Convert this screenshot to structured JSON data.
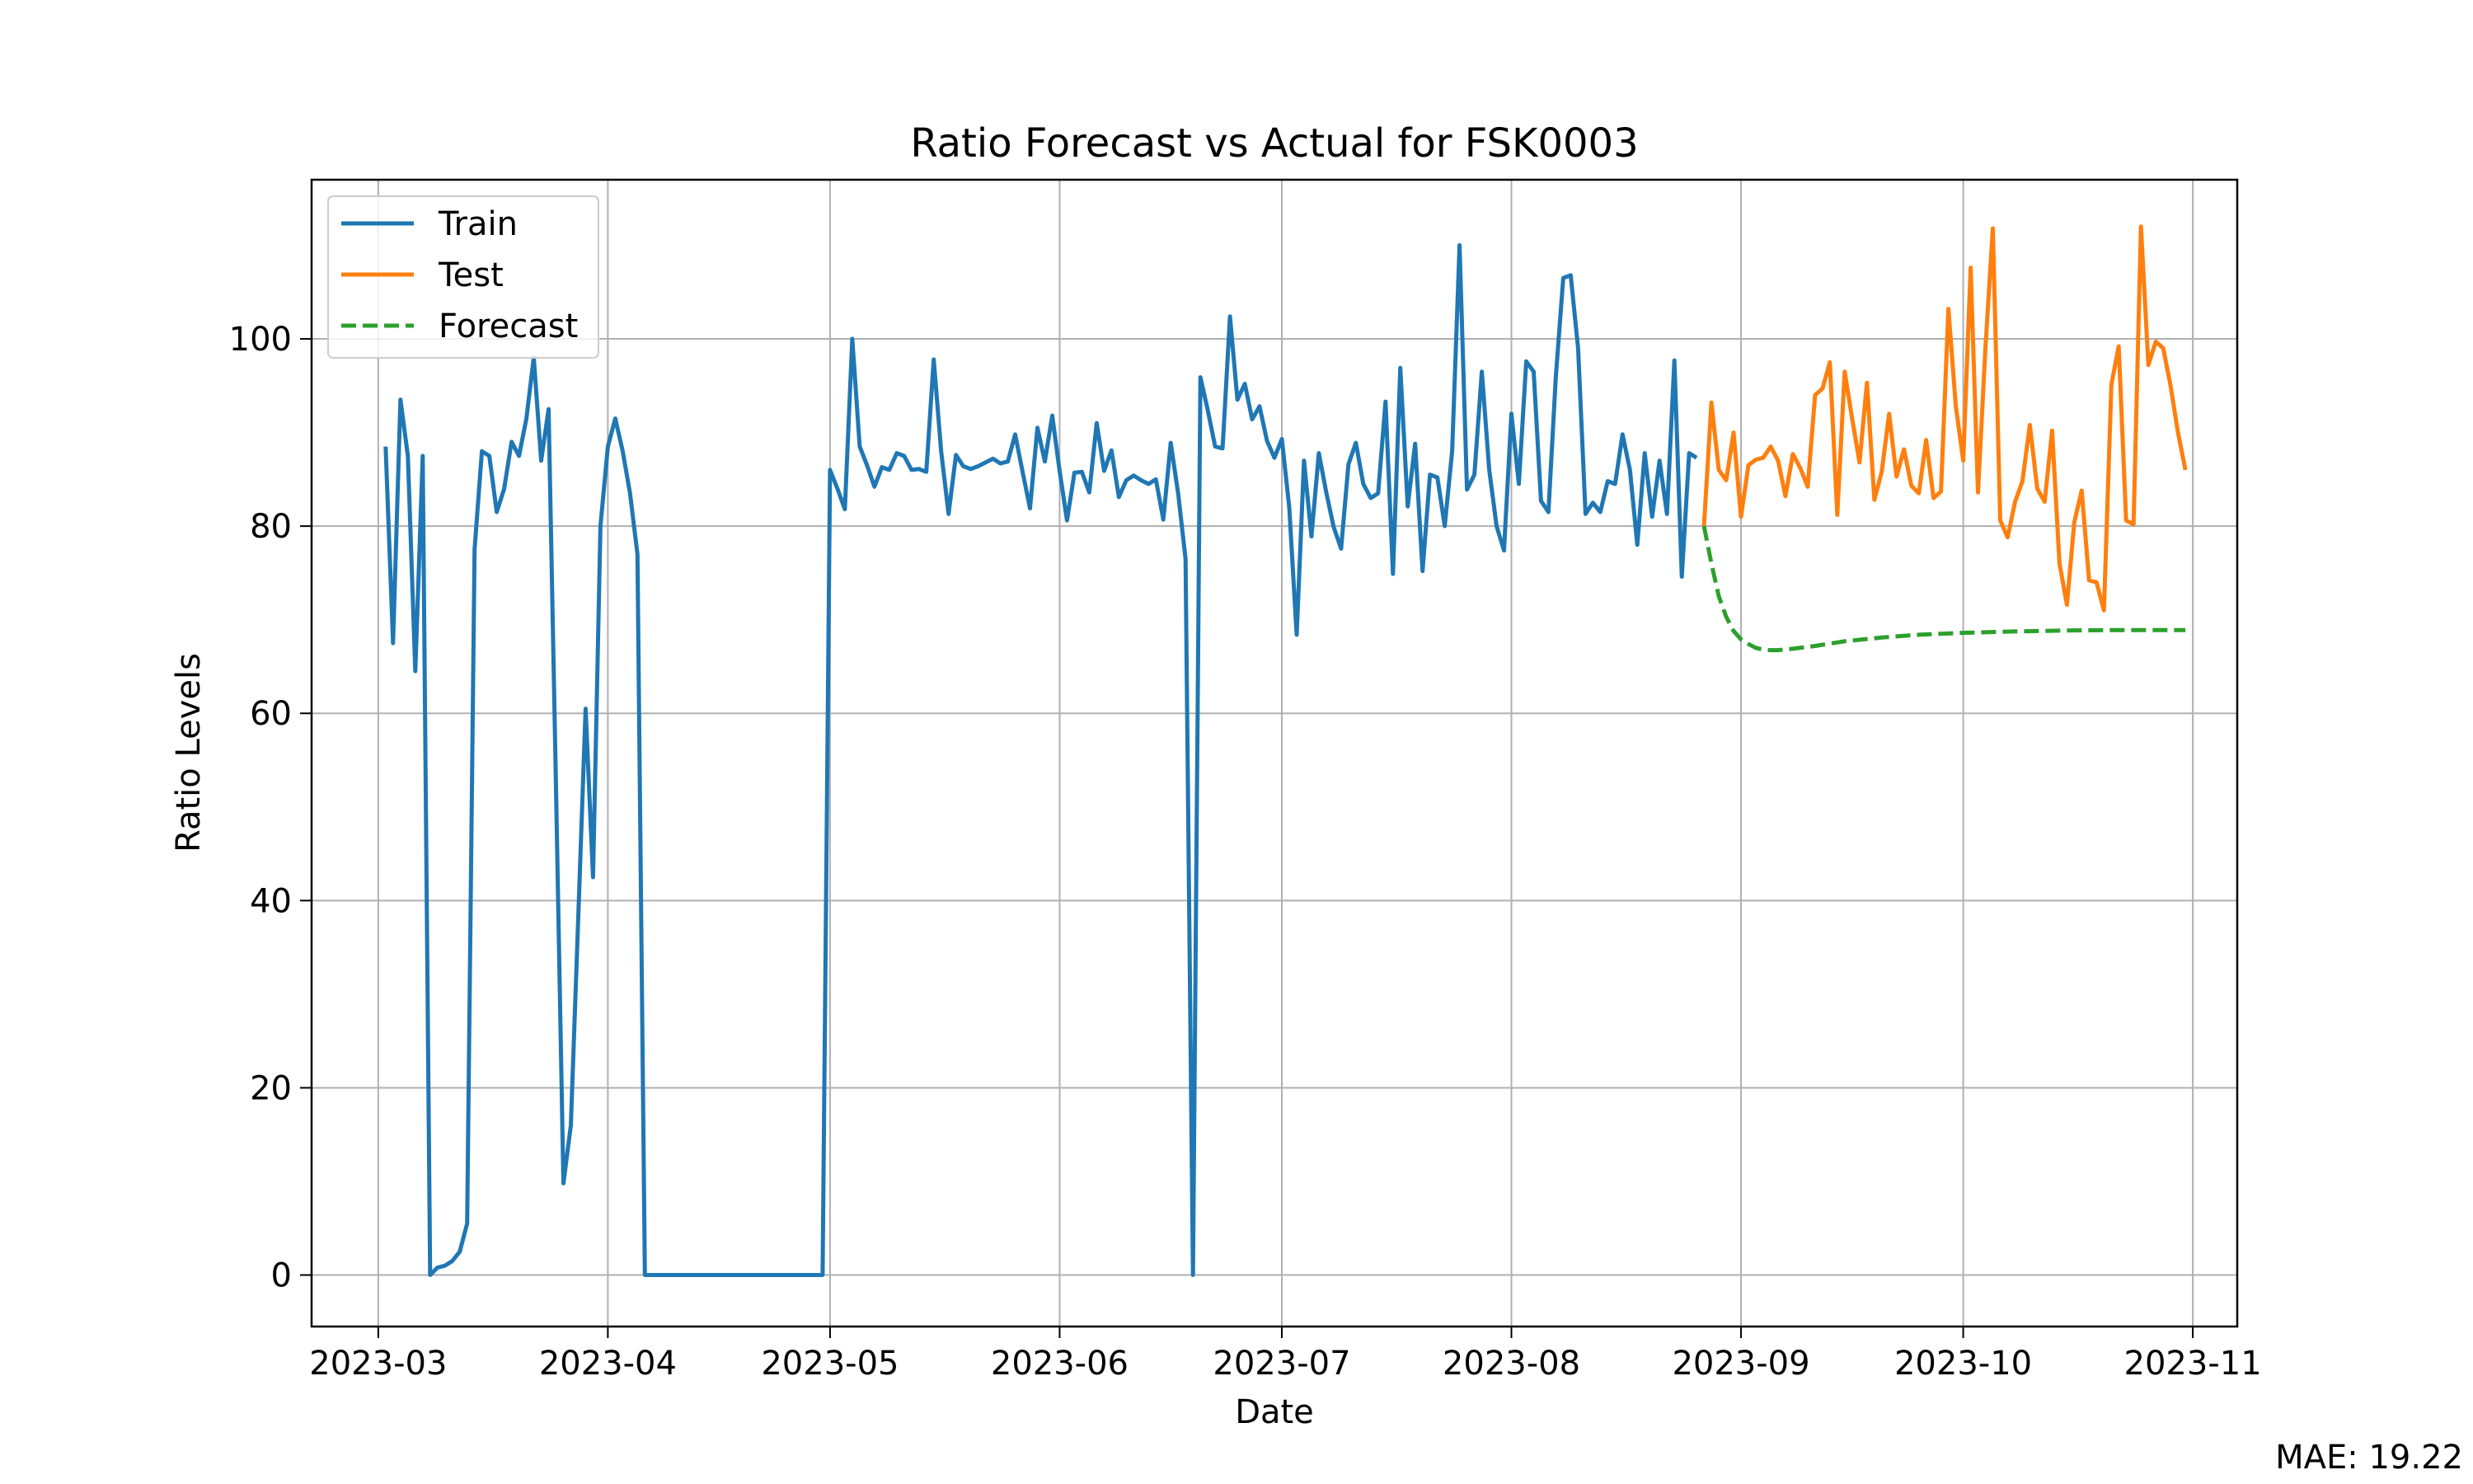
{
  "chart_data": {
    "type": "line",
    "title": "Ratio Forecast vs Actual for FSK0003",
    "xlabel": "Date",
    "ylabel": "Ratio Levels",
    "x_axis_type": "date",
    "xlim": [
      "2023-02-20",
      "2023-11-07"
    ],
    "ylim": [
      -5.5,
      117
    ],
    "x_ticks": [
      "2023-03",
      "2023-04",
      "2023-05",
      "2023-06",
      "2023-07",
      "2023-08",
      "2023-09",
      "2023-10",
      "2023-11"
    ],
    "y_ticks": [
      0,
      20,
      40,
      60,
      80,
      100
    ],
    "grid": true,
    "legend_position": "top-left",
    "series": [
      {
        "name": "Train",
        "color": "#1f77b4",
        "style": "solid",
        "points": [
          [
            "2023-03-02",
            88.5
          ],
          [
            "2023-03-03",
            67.5
          ],
          [
            "2023-03-04",
            93.5
          ],
          [
            "2023-03-05",
            87.5
          ],
          [
            "2023-03-06",
            64.5
          ],
          [
            "2023-03-07",
            87.5
          ],
          [
            "2023-03-08",
            0
          ],
          [
            "2023-03-09",
            0.8
          ],
          [
            "2023-03-10",
            1.0
          ],
          [
            "2023-03-11",
            1.5
          ],
          [
            "2023-03-12",
            2.5
          ],
          [
            "2023-03-13",
            5.5
          ],
          [
            "2023-03-14",
            77.5
          ],
          [
            "2023-03-15",
            88.0
          ],
          [
            "2023-03-16",
            87.5
          ],
          [
            "2023-03-17",
            81.5
          ],
          [
            "2023-03-18",
            84.0
          ],
          [
            "2023-03-19",
            89.0
          ],
          [
            "2023-03-20",
            87.5
          ],
          [
            "2023-03-21",
            91.5
          ],
          [
            "2023-03-22",
            98.0
          ],
          [
            "2023-03-23",
            87.0
          ],
          [
            "2023-03-24",
            92.5
          ],
          [
            "2023-03-25",
            52.0
          ],
          [
            "2023-03-26",
            9.8
          ],
          [
            "2023-03-27",
            16.0
          ],
          [
            "2023-03-28",
            38.0
          ],
          [
            "2023-03-29",
            60.5
          ],
          [
            "2023-03-30",
            42.5
          ],
          [
            "2023-03-31",
            80.0
          ],
          [
            "2023-04-01",
            88.5
          ],
          [
            "2023-04-02",
            91.5
          ],
          [
            "2023-04-03",
            88.0
          ],
          [
            "2023-04-04",
            83.5
          ],
          [
            "2023-04-05",
            77.0
          ],
          [
            "2023-04-06",
            0
          ],
          [
            "2023-04-30",
            0
          ],
          [
            "2023-05-01",
            86.0
          ],
          [
            "2023-05-02",
            84.0
          ],
          [
            "2023-05-03",
            81.8
          ],
          [
            "2023-05-04",
            100.0
          ],
          [
            "2023-05-05",
            88.5
          ],
          [
            "2023-05-06",
            86.5
          ],
          [
            "2023-05-07",
            84.2
          ],
          [
            "2023-05-08",
            86.3
          ],
          [
            "2023-05-09",
            86.0
          ],
          [
            "2023-05-10",
            87.8
          ],
          [
            "2023-05-11",
            87.5
          ],
          [
            "2023-05-12",
            86.0
          ],
          [
            "2023-05-13",
            86.1
          ],
          [
            "2023-05-14",
            85.8
          ],
          [
            "2023-05-15",
            97.8
          ],
          [
            "2023-05-16",
            88.0
          ],
          [
            "2023-05-17",
            81.3
          ],
          [
            "2023-05-18",
            87.6
          ],
          [
            "2023-05-19",
            86.4
          ],
          [
            "2023-05-20",
            86.1
          ],
          [
            "2023-05-21",
            86.4
          ],
          [
            "2023-05-22",
            86.8
          ],
          [
            "2023-05-23",
            87.2
          ],
          [
            "2023-05-24",
            86.7
          ],
          [
            "2023-05-25",
            86.9
          ],
          [
            "2023-05-26",
            89.8
          ],
          [
            "2023-05-27",
            85.8
          ],
          [
            "2023-05-28",
            81.9
          ],
          [
            "2023-05-29",
            90.5
          ],
          [
            "2023-05-30",
            86.9
          ],
          [
            "2023-05-31",
            91.8
          ],
          [
            "2023-06-01",
            85.9
          ],
          [
            "2023-06-02",
            80.6
          ],
          [
            "2023-06-03",
            85.7
          ],
          [
            "2023-06-04",
            85.8
          ],
          [
            "2023-06-05",
            83.6
          ],
          [
            "2023-06-06",
            91.0
          ],
          [
            "2023-06-07",
            85.9
          ],
          [
            "2023-06-08",
            88.1
          ],
          [
            "2023-06-09",
            83.1
          ],
          [
            "2023-06-10",
            84.9
          ],
          [
            "2023-06-11",
            85.4
          ],
          [
            "2023-06-12",
            84.9
          ],
          [
            "2023-06-13",
            84.5
          ],
          [
            "2023-06-14",
            85.0
          ],
          [
            "2023-06-15",
            80.7
          ],
          [
            "2023-06-16",
            88.9
          ],
          [
            "2023-06-17",
            83.5
          ],
          [
            "2023-06-18",
            76.5
          ],
          [
            "2023-06-19",
            0
          ],
          [
            "2023-06-20",
            95.9
          ],
          [
            "2023-06-21",
            92.4
          ],
          [
            "2023-06-22",
            88.5
          ],
          [
            "2023-06-23",
            88.3
          ],
          [
            "2023-06-24",
            102.4
          ],
          [
            "2023-06-25",
            93.5
          ],
          [
            "2023-06-26",
            95.2
          ],
          [
            "2023-06-27",
            91.4
          ],
          [
            "2023-06-28",
            92.8
          ],
          [
            "2023-06-29",
            89.1
          ],
          [
            "2023-06-30",
            87.3
          ],
          [
            "2023-07-01",
            89.3
          ],
          [
            "2023-07-02",
            82.0
          ],
          [
            "2023-07-03",
            68.4
          ],
          [
            "2023-07-04",
            87.0
          ],
          [
            "2023-07-05",
            78.9
          ],
          [
            "2023-07-06",
            87.8
          ],
          [
            "2023-07-07",
            83.6
          ],
          [
            "2023-07-08",
            79.9
          ],
          [
            "2023-07-09",
            77.6
          ],
          [
            "2023-07-10",
            86.6
          ],
          [
            "2023-07-11",
            88.9
          ],
          [
            "2023-07-12",
            84.5
          ],
          [
            "2023-07-13",
            83.0
          ],
          [
            "2023-07-14",
            83.5
          ],
          [
            "2023-07-15",
            93.3
          ],
          [
            "2023-07-16",
            74.9
          ],
          [
            "2023-07-17",
            96.9
          ],
          [
            "2023-07-18",
            82.1
          ],
          [
            "2023-07-19",
            88.8
          ],
          [
            "2023-07-20",
            75.2
          ],
          [
            "2023-07-21",
            85.5
          ],
          [
            "2023-07-22",
            85.2
          ],
          [
            "2023-07-23",
            80.0
          ],
          [
            "2023-07-24",
            88.0
          ],
          [
            "2023-07-25",
            110.0
          ],
          [
            "2023-07-26",
            83.9
          ],
          [
            "2023-07-27",
            85.5
          ],
          [
            "2023-07-28",
            96.5
          ],
          [
            "2023-07-29",
            86.0
          ],
          [
            "2023-07-30",
            80.0
          ],
          [
            "2023-07-31",
            77.4
          ],
          [
            "2023-08-01",
            92.0
          ],
          [
            "2023-08-02",
            84.5
          ],
          [
            "2023-08-03",
            97.6
          ],
          [
            "2023-08-04",
            96.5
          ],
          [
            "2023-08-05",
            82.7
          ],
          [
            "2023-08-06",
            81.5
          ],
          [
            "2023-08-07",
            96.0
          ],
          [
            "2023-08-08",
            106.5
          ],
          [
            "2023-08-09",
            106.8
          ],
          [
            "2023-08-10",
            99.0
          ],
          [
            "2023-08-11",
            81.3
          ],
          [
            "2023-08-12",
            82.5
          ],
          [
            "2023-08-13",
            81.5
          ],
          [
            "2023-08-14",
            84.8
          ],
          [
            "2023-08-15",
            84.5
          ],
          [
            "2023-08-16",
            89.8
          ],
          [
            "2023-08-17",
            86.0
          ],
          [
            "2023-08-18",
            78.0
          ],
          [
            "2023-08-19",
            87.8
          ],
          [
            "2023-08-20",
            81.0
          ],
          [
            "2023-08-21",
            87.0
          ],
          [
            "2023-08-22",
            81.3
          ],
          [
            "2023-08-23",
            97.7
          ],
          [
            "2023-08-24",
            74.6
          ],
          [
            "2023-08-25",
            87.8
          ],
          [
            "2023-08-26",
            87.3
          ]
        ]
      },
      {
        "name": "Test",
        "color": "#ff7f0e",
        "style": "solid",
        "points": [
          [
            "2023-08-27",
            80.0
          ],
          [
            "2023-08-28",
            93.2
          ],
          [
            "2023-08-29",
            86.0
          ],
          [
            "2023-08-30",
            84.9
          ],
          [
            "2023-08-31",
            90.0
          ],
          [
            "2023-09-01",
            81.0
          ],
          [
            "2023-09-02",
            86.5
          ],
          [
            "2023-09-03",
            87.1
          ],
          [
            "2023-09-04",
            87.3
          ],
          [
            "2023-09-05",
            88.5
          ],
          [
            "2023-09-06",
            87.0
          ],
          [
            "2023-09-07",
            83.2
          ],
          [
            "2023-09-08",
            87.7
          ],
          [
            "2023-09-09",
            86.2
          ],
          [
            "2023-09-10",
            84.2
          ],
          [
            "2023-09-11",
            94.0
          ],
          [
            "2023-09-12",
            94.7
          ],
          [
            "2023-09-13",
            97.5
          ],
          [
            "2023-09-14",
            81.2
          ],
          [
            "2023-09-15",
            96.5
          ],
          [
            "2023-09-16",
            91.5
          ],
          [
            "2023-09-17",
            86.8
          ],
          [
            "2023-09-18",
            95.3
          ],
          [
            "2023-09-19",
            82.8
          ],
          [
            "2023-09-20",
            85.8
          ],
          [
            "2023-09-21",
            92.0
          ],
          [
            "2023-09-22",
            85.3
          ],
          [
            "2023-09-23",
            88.2
          ],
          [
            "2023-09-24",
            84.3
          ],
          [
            "2023-09-25",
            83.5
          ],
          [
            "2023-09-26",
            89.2
          ],
          [
            "2023-09-27",
            83.0
          ],
          [
            "2023-09-28",
            83.7
          ],
          [
            "2023-09-29",
            103.2
          ],
          [
            "2023-09-30",
            92.8
          ],
          [
            "2023-10-01",
            87.0
          ],
          [
            "2023-10-02",
            107.6
          ],
          [
            "2023-10-03",
            83.6
          ],
          [
            "2023-10-04",
            99.0
          ],
          [
            "2023-10-05",
            111.8
          ],
          [
            "2023-10-06",
            80.6
          ],
          [
            "2023-10-07",
            78.8
          ],
          [
            "2023-10-08",
            82.6
          ],
          [
            "2023-10-09",
            84.8
          ],
          [
            "2023-10-10",
            90.8
          ],
          [
            "2023-10-11",
            84.0
          ],
          [
            "2023-10-12",
            82.6
          ],
          [
            "2023-10-13",
            90.2
          ],
          [
            "2023-10-14",
            76.0
          ],
          [
            "2023-10-15",
            71.6
          ],
          [
            "2023-10-16",
            80.4
          ],
          [
            "2023-10-17",
            83.8
          ],
          [
            "2023-10-18",
            74.2
          ],
          [
            "2023-10-19",
            74.0
          ],
          [
            "2023-10-20",
            71.0
          ],
          [
            "2023-10-21",
            95.1
          ],
          [
            "2023-10-22",
            99.2
          ],
          [
            "2023-10-23",
            80.6
          ],
          [
            "2023-10-24",
            80.2
          ],
          [
            "2023-10-25",
            112.0
          ],
          [
            "2023-10-26",
            97.2
          ],
          [
            "2023-10-27",
            99.7
          ],
          [
            "2023-10-28",
            99.0
          ],
          [
            "2023-10-29",
            95.0
          ],
          [
            "2023-10-30",
            90.0
          ],
          [
            "2023-10-31",
            86.0
          ]
        ]
      },
      {
        "name": "Forecast",
        "color": "#2ca02c",
        "style": "dashed",
        "points": [
          [
            "2023-08-27",
            80.0
          ],
          [
            "2023-08-28",
            76.0
          ],
          [
            "2023-08-29",
            72.5
          ],
          [
            "2023-08-30",
            70.3
          ],
          [
            "2023-08-31",
            68.8
          ],
          [
            "2023-09-01",
            67.9
          ],
          [
            "2023-09-02",
            67.4
          ],
          [
            "2023-09-03",
            67.0
          ],
          [
            "2023-09-04",
            66.8
          ],
          [
            "2023-09-05",
            66.75
          ],
          [
            "2023-09-06",
            66.75
          ],
          [
            "2023-09-08",
            66.9
          ],
          [
            "2023-09-11",
            67.2
          ],
          [
            "2023-09-15",
            67.7
          ],
          [
            "2023-09-20",
            68.1
          ],
          [
            "2023-09-25",
            68.4
          ],
          [
            "2023-10-01",
            68.6
          ],
          [
            "2023-10-08",
            68.75
          ],
          [
            "2023-10-15",
            68.85
          ],
          [
            "2023-10-22",
            68.9
          ],
          [
            "2023-10-31",
            68.9
          ]
        ]
      }
    ],
    "annotations": [
      "MAE: 19.22"
    ]
  }
}
